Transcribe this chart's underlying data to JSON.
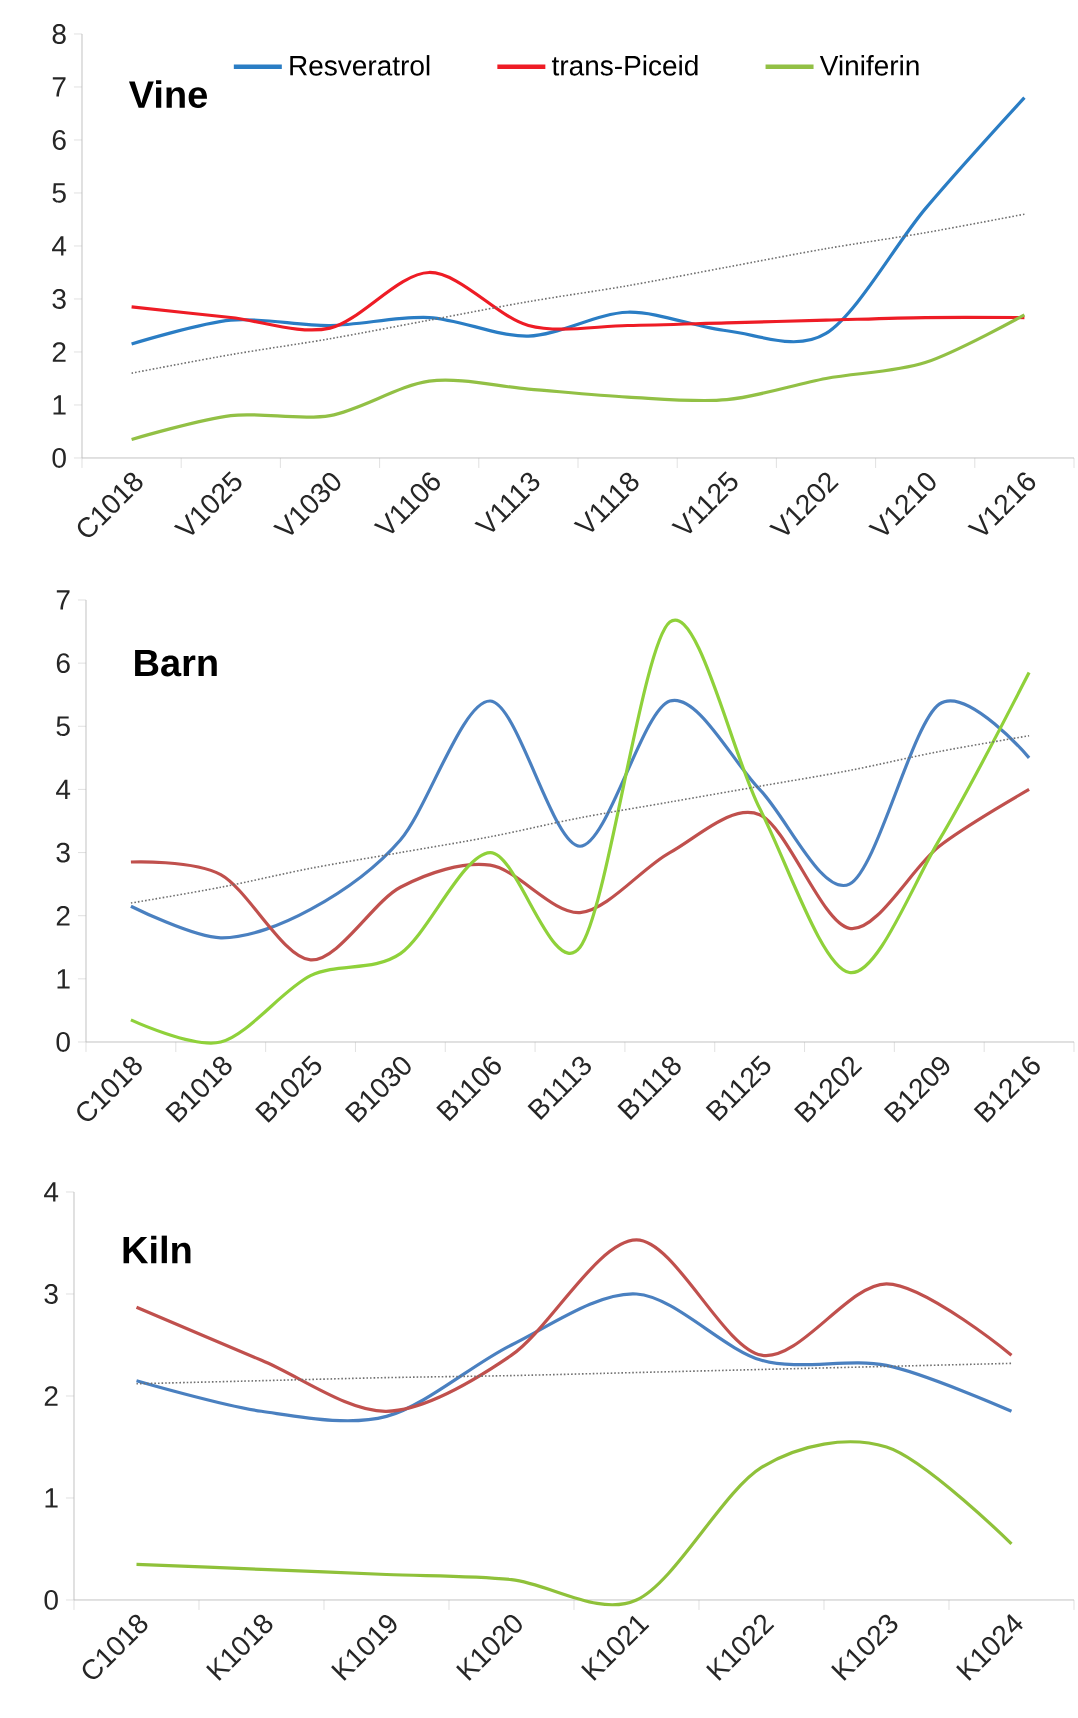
{
  "chart_data": [
    {
      "type": "line",
      "title": "Vine",
      "line_style": "solid",
      "legend": "top",
      "ylim": [
        0,
        8
      ],
      "yticks": [
        0,
        1,
        2,
        3,
        4,
        5,
        6,
        7,
        8
      ],
      "categories": [
        "C1018",
        "V1025",
        "V1030",
        "V1106",
        "V1113",
        "V1118",
        "V1125",
        "V1202",
        "V1210",
        "V1216"
      ],
      "series": [
        {
          "name": "Resveratrol",
          "color": "#2a7dc4",
          "values": [
            2.15,
            2.6,
            2.5,
            2.65,
            2.3,
            2.75,
            2.4,
            2.35,
            4.7,
            6.8
          ]
        },
        {
          "name": "trans-Piceid",
          "color": "#ee1c25",
          "values": [
            2.85,
            2.65,
            2.45,
            3.5,
            2.5,
            2.5,
            2.55,
            2.6,
            2.65,
            2.65
          ]
        },
        {
          "name": "Viniferin",
          "color": "#92c045",
          "values": [
            0.35,
            0.8,
            0.8,
            1.45,
            1.3,
            1.15,
            1.1,
            1.5,
            1.8,
            2.7
          ]
        },
        {
          "color": "#707070",
          "line_style": "dotted",
          "values": [
            1.6,
            1.95,
            2.25,
            2.6,
            2.95,
            3.25,
            3.6,
            3.95,
            4.25,
            4.6
          ]
        }
      ]
    },
    {
      "type": "line",
      "title": "Barn",
      "line_style": "solid",
      "ylim": [
        0,
        7
      ],
      "yticks": [
        0,
        1,
        2,
        3,
        4,
        5,
        6,
        7
      ],
      "categories": [
        "C1018",
        "B1018",
        "B1025",
        "B1030",
        "B1106",
        "B1113",
        "B1118",
        "B1125",
        "B1202",
        "B1209",
        "B1216"
      ],
      "series": [
        {
          "color": "#4a80c0",
          "values": [
            2.15,
            1.65,
            2.1,
            3.2,
            5.4,
            3.1,
            5.4,
            4.0,
            2.5,
            5.35,
            4.5
          ]
        },
        {
          "color": "#c0504d",
          "values": [
            2.85,
            2.65,
            1.3,
            2.45,
            2.8,
            2.05,
            3.0,
            3.6,
            1.8,
            3.1,
            4.0
          ]
        },
        {
          "color": "#8fd13a",
          "values": [
            0.35,
            0.0,
            1.05,
            1.4,
            3.0,
            1.5,
            6.65,
            3.7,
            1.1,
            3.2,
            5.85
          ]
        },
        {
          "color": "#707070",
          "line_style": "dotted",
          "values": [
            2.2,
            2.45,
            2.75,
            3.0,
            3.25,
            3.55,
            3.8,
            4.05,
            4.3,
            4.6,
            4.85
          ]
        }
      ]
    },
    {
      "type": "line",
      "title": "Kiln",
      "line_style": "solid",
      "ylim": [
        0,
        4
      ],
      "yticks": [
        0,
        1,
        2,
        3,
        4
      ],
      "categories": [
        "C1018",
        "K1018",
        "K1019",
        "K1020",
        "K1021",
        "K1022",
        "K1023",
        "K1024"
      ],
      "series": [
        {
          "color": "#4a80c0",
          "values": [
            2.15,
            1.85,
            1.8,
            2.5,
            3.0,
            2.35,
            2.3,
            1.85
          ]
        },
        {
          "color": "#c0504d",
          "values": [
            2.87,
            2.35,
            1.85,
            2.4,
            3.53,
            2.4,
            3.1,
            2.4
          ]
        },
        {
          "color": "#8fc13a",
          "values": [
            0.35,
            0.3,
            0.25,
            0.2,
            0.0,
            1.3,
            1.5,
            0.55
          ]
        },
        {
          "color": "#707070",
          "line_style": "dotted",
          "values": [
            2.12,
            2.15,
            2.18,
            2.2,
            2.23,
            2.26,
            2.29,
            2.32
          ]
        }
      ]
    }
  ]
}
